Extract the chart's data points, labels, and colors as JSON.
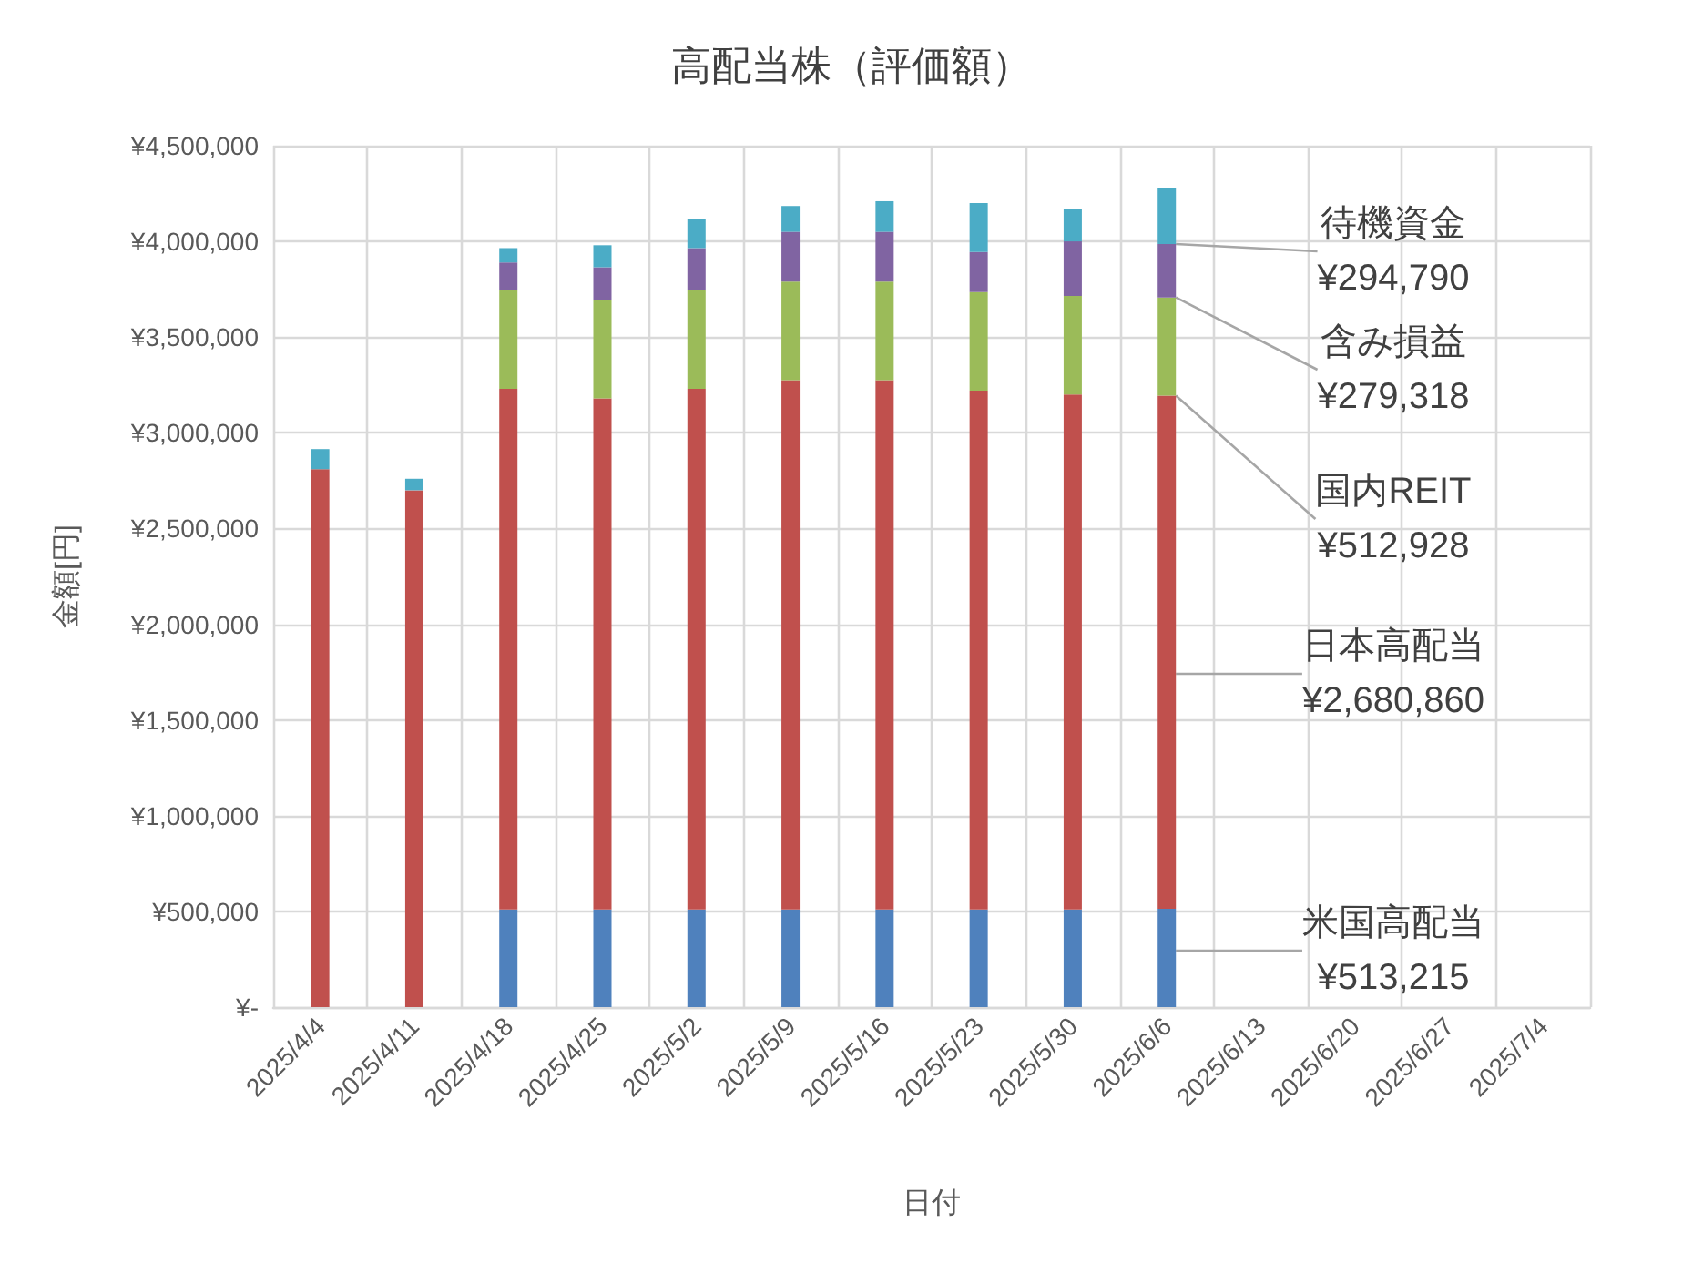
{
  "chart_data": {
    "type": "bar",
    "stacked": true,
    "title": "高配当株（評価額）",
    "xlabel": "日付",
    "ylabel": "金額[円]",
    "categories": [
      "2025/4/4",
      "2025/4/11",
      "2025/4/18",
      "2025/4/25",
      "2025/5/2",
      "2025/5/9",
      "2025/5/16",
      "2025/5/23",
      "2025/5/30",
      "2025/6/6",
      "2025/6/13",
      "2025/6/20",
      "2025/6/27",
      "2025/7/4"
    ],
    "series": [
      {
        "name": "米国高配当",
        "color": "#4f81bd",
        "values": [
          null,
          null,
          510000,
          510000,
          510000,
          510000,
          510000,
          510000,
          510000,
          513215,
          null,
          null,
          null,
          null
        ],
        "value_labels": [
          null,
          null,
          null,
          null,
          null,
          null,
          null,
          null,
          null,
          "¥513,215",
          null,
          null,
          null,
          null
        ]
      },
      {
        "name": "日本高配当",
        "color": "#c0504d",
        "values": [
          2810000,
          2700000,
          2720000,
          2670000,
          2720000,
          2765000,
          2765000,
          2710000,
          2690000,
          2680860,
          null,
          null,
          null,
          null
        ],
        "value_labels": [
          null,
          null,
          null,
          null,
          null,
          null,
          null,
          null,
          null,
          "¥2,680,860",
          null,
          null,
          null,
          null
        ]
      },
      {
        "name": "国内REIT",
        "color": "#9bbb59",
        "values": [
          null,
          null,
          515000,
          515000,
          515000,
          515000,
          515000,
          515000,
          515000,
          512928,
          null,
          null,
          null,
          null
        ],
        "value_labels": [
          null,
          null,
          null,
          null,
          null,
          null,
          null,
          null,
          null,
          "¥512,928",
          null,
          null,
          null,
          null
        ]
      },
      {
        "name": "含み損益",
        "color": "#8064a2",
        "values": [
          null,
          null,
          145000,
          170000,
          220000,
          260000,
          260000,
          210000,
          285000,
          279318,
          null,
          null,
          null,
          null
        ],
        "value_labels": [
          null,
          null,
          null,
          null,
          null,
          null,
          null,
          null,
          null,
          "¥279,318",
          null,
          null,
          null,
          null
        ]
      },
      {
        "name": "待機資金",
        "color": "#4bacc6",
        "values": [
          105000,
          60000,
          75000,
          115000,
          150000,
          135000,
          160000,
          255000,
          170000,
          294790,
          null,
          null,
          null,
          null
        ],
        "value_labels": [
          null,
          null,
          null,
          null,
          null,
          null,
          null,
          null,
          null,
          "¥294,790",
          null,
          null,
          null,
          null
        ]
      }
    ],
    "ylim": [
      0,
      4500000
    ],
    "yticks": [
      {
        "value": 0,
        "label": "¥-"
      },
      {
        "value": 500000,
        "label": "¥500,000"
      },
      {
        "value": 1000000,
        "label": "¥1,000,000"
      },
      {
        "value": 1500000,
        "label": "¥1,500,000"
      },
      {
        "value": 2000000,
        "label": "¥2,000,000"
      },
      {
        "value": 2500000,
        "label": "¥2,500,000"
      },
      {
        "value": 3000000,
        "label": "¥3,000,000"
      },
      {
        "value": 3500000,
        "label": "¥3,500,000"
      },
      {
        "value": 4000000,
        "label": "¥4,000,000"
      },
      {
        "value": 4500000,
        "label": "¥4,500,000"
      }
    ],
    "grid": true,
    "legend": false
  }
}
